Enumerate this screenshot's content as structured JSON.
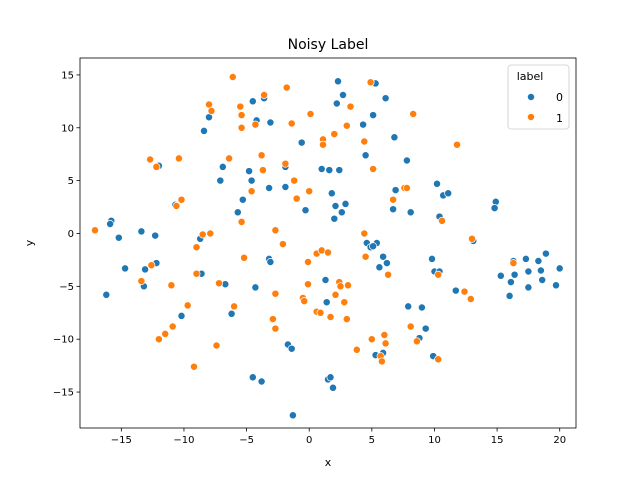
{
  "chart_data": {
    "type": "scatter",
    "title": "Noisy Label",
    "xlabel": "x",
    "ylabel": "y",
    "xlim": [
      -18.3,
      21.3
    ],
    "ylim": [
      -18.4,
      16.6
    ],
    "xticks": [
      -15,
      -10,
      -5,
      0,
      5,
      10,
      15,
      20
    ],
    "yticks": [
      -15,
      -10,
      -5,
      0,
      5,
      10,
      15
    ],
    "grid": false,
    "legend": {
      "title": "label",
      "placement": "top-right"
    },
    "series": [
      {
        "name": "0",
        "color": "#1f77b4",
        "points": [
          [
            -15.8,
            1.2
          ],
          [
            -15.9,
            0.9
          ],
          [
            -15.2,
            -0.4
          ],
          [
            -14.7,
            -3.3
          ],
          [
            -16.2,
            -5.8
          ],
          [
            -13.4,
            0.2
          ],
          [
            -12.3,
            -0.2
          ],
          [
            -13.1,
            -3.4
          ],
          [
            -12.2,
            -2.8
          ],
          [
            -13.2,
            -5.0
          ],
          [
            -12.0,
            6.4
          ],
          [
            -10.7,
            2.7
          ],
          [
            -8.7,
            -0.5
          ],
          [
            -8.6,
            -3.8
          ],
          [
            -8.4,
            9.7
          ],
          [
            -8.0,
            11.0
          ],
          [
            -7.1,
            5.0
          ],
          [
            -6.9,
            6.3
          ],
          [
            -5.7,
            2.0
          ],
          [
            -5.3,
            3.2
          ],
          [
            -6.7,
            -4.8
          ],
          [
            -6.2,
            -7.6
          ],
          [
            -10.2,
            -7.8
          ],
          [
            -4.8,
            5.9
          ],
          [
            -4.6,
            5.0
          ],
          [
            -4.5,
            12.5
          ],
          [
            -4.2,
            10.7
          ],
          [
            -3.6,
            12.8
          ],
          [
            -3.1,
            10.5
          ],
          [
            -3.2,
            4.3
          ],
          [
            -3.2,
            -2.4
          ],
          [
            -3.1,
            -2.7
          ],
          [
            -4.3,
            -5.1
          ],
          [
            -4.5,
            -13.6
          ],
          [
            -3.8,
            -14.0
          ],
          [
            -1.9,
            6.3
          ],
          [
            -1.9,
            4.4
          ],
          [
            -1.7,
            -10.5
          ],
          [
            -1.4,
            -10.9
          ],
          [
            -1.3,
            -17.2
          ],
          [
            -0.6,
            8.6
          ],
          [
            -0.3,
            2.2
          ],
          [
            1.0,
            6.1
          ],
          [
            1.6,
            6.0
          ],
          [
            1.8,
            3.8
          ],
          [
            2.1,
            2.6
          ],
          [
            2.0,
            1.4
          ],
          [
            2.4,
            6.0
          ],
          [
            2.3,
            14.4
          ],
          [
            2.2,
            12.3
          ],
          [
            2.7,
            13.1
          ],
          [
            2.9,
            2.8
          ],
          [
            1.3,
            -4.4
          ],
          [
            1.4,
            -6.5
          ],
          [
            1.5,
            -13.8
          ],
          [
            1.9,
            -14.6
          ],
          [
            1.7,
            -13.6
          ],
          [
            2.6,
            2.0
          ],
          [
            4.3,
            10.3
          ],
          [
            4.5,
            7.4
          ],
          [
            5.1,
            11.2
          ],
          [
            5.3,
            14.2
          ],
          [
            6.1,
            12.8
          ],
          [
            6.8,
            9.1
          ],
          [
            4.6,
            -0.9
          ],
          [
            4.9,
            -1.3
          ],
          [
            5.4,
            -0.9
          ],
          [
            5.6,
            -3.2
          ],
          [
            5.1,
            -1.2
          ],
          [
            5.3,
            -11.5
          ],
          [
            5.9,
            -11.3
          ],
          [
            5.9,
            -2.2
          ],
          [
            6.2,
            -2.8
          ],
          [
            6.7,
            2.3
          ],
          [
            6.9,
            4.1
          ],
          [
            7.8,
            6.9
          ],
          [
            7.9,
            -6.9
          ],
          [
            8.1,
            2.0
          ],
          [
            8.8,
            -9.9
          ],
          [
            9.0,
            -7.0
          ],
          [
            9.3,
            -9.0
          ],
          [
            9.8,
            -2.4
          ],
          [
            10.0,
            -3.6
          ],
          [
            9.9,
            -11.6
          ],
          [
            10.2,
            4.7
          ],
          [
            10.4,
            1.6
          ],
          [
            10.7,
            3.6
          ],
          [
            11.1,
            3.8
          ],
          [
            10.4,
            -3.6
          ],
          [
            11.7,
            -5.4
          ],
          [
            13.1,
            -0.7
          ],
          [
            14.9,
            3.0
          ],
          [
            14.8,
            2.4
          ],
          [
            15.3,
            -4.0
          ],
          [
            16.1,
            -4.6
          ],
          [
            16.0,
            -5.9
          ],
          [
            16.3,
            -2.6
          ],
          [
            16.4,
            -3.9
          ],
          [
            17.3,
            -2.4
          ],
          [
            17.5,
            -3.6
          ],
          [
            17.5,
            -5.1
          ],
          [
            18.3,
            -2.6
          ],
          [
            18.5,
            -3.5
          ],
          [
            18.6,
            -4.4
          ],
          [
            18.9,
            -1.9
          ],
          [
            19.7,
            -4.9
          ],
          [
            20.0,
            -3.3
          ]
        ]
      },
      {
        "name": "1",
        "color": "#ff7f0e",
        "points": [
          [
            -17.1,
            0.3
          ],
          [
            -13.4,
            -4.5
          ],
          [
            -12.6,
            -3.0
          ],
          [
            -12.7,
            7.0
          ],
          [
            -12.2,
            6.3
          ],
          [
            -10.6,
            2.6
          ],
          [
            -10.4,
            7.1
          ],
          [
            -10.2,
            3.2
          ],
          [
            -11.0,
            -4.9
          ],
          [
            -9.7,
            -6.8
          ],
          [
            -10.9,
            -8.8
          ],
          [
            -11.5,
            -9.5
          ],
          [
            -12.0,
            -10.0
          ],
          [
            -9.2,
            -12.6
          ],
          [
            -9.0,
            -3.8
          ],
          [
            -9.0,
            -1.3
          ],
          [
            -8.5,
            -0.1
          ],
          [
            -7.9,
            0.0
          ],
          [
            -8.0,
            12.2
          ],
          [
            -7.8,
            11.6
          ],
          [
            -6.4,
            7.1
          ],
          [
            -7.2,
            -4.7
          ],
          [
            -7.4,
            -10.6
          ],
          [
            -6.0,
            -6.9
          ],
          [
            -5.4,
            1.1
          ],
          [
            -5.2,
            -2.3
          ],
          [
            -5.5,
            12.0
          ],
          [
            -5.4,
            10.0
          ],
          [
            -6.1,
            14.8
          ],
          [
            -5.4,
            11.2
          ],
          [
            -4.6,
            4.0
          ],
          [
            -4.3,
            10.3
          ],
          [
            -3.6,
            13.1
          ],
          [
            -3.8,
            7.4
          ],
          [
            -3.7,
            6.0
          ],
          [
            -2.7,
            0.3
          ],
          [
            -2.7,
            -5.7
          ],
          [
            -2.9,
            -8.1
          ],
          [
            -2.7,
            -9.0
          ],
          [
            -2.1,
            -1.0
          ],
          [
            -1.9,
            6.6
          ],
          [
            -1.8,
            13.8
          ],
          [
            -1.4,
            10.4
          ],
          [
            -1.2,
            5.0
          ],
          [
            -1.0,
            3.3
          ],
          [
            -0.5,
            -6.1
          ],
          [
            -0.4,
            -6.4
          ],
          [
            -0.1,
            -2.7
          ],
          [
            -0.1,
            -4.8
          ],
          [
            0.1,
            11.3
          ],
          [
            0.0,
            4.0
          ],
          [
            0.6,
            -7.4
          ],
          [
            0.6,
            -1.9
          ],
          [
            0.9,
            -7.5
          ],
          [
            1.0,
            -1.6
          ],
          [
            1.1,
            8.9
          ],
          [
            1.1,
            8.4
          ],
          [
            1.5,
            -1.8
          ],
          [
            1.7,
            -7.9
          ],
          [
            2.0,
            9.4
          ],
          [
            2.1,
            -5.8
          ],
          [
            2.4,
            -4.6
          ],
          [
            2.5,
            -5.0
          ],
          [
            2.8,
            -6.5
          ],
          [
            3.0,
            -8.1
          ],
          [
            3.0,
            10.2
          ],
          [
            3.1,
            -4.9
          ],
          [
            3.3,
            12.0
          ],
          [
            3.8,
            -11.0
          ],
          [
            4.4,
            0.0
          ],
          [
            4.4,
            8.7
          ],
          [
            4.5,
            -2.2
          ],
          [
            4.9,
            14.3
          ],
          [
            5.0,
            -10.0
          ],
          [
            5.1,
            6.1
          ],
          [
            5.7,
            -11.6
          ],
          [
            5.8,
            -12.1
          ],
          [
            6.0,
            -9.6
          ],
          [
            6.1,
            -10.4
          ],
          [
            6.3,
            -3.9
          ],
          [
            6.7,
            3.2
          ],
          [
            7.6,
            4.3
          ],
          [
            7.8,
            4.3
          ],
          [
            8.1,
            -8.8
          ],
          [
            8.3,
            11.3
          ],
          [
            8.6,
            -10.2
          ],
          [
            10.3,
            -11.9
          ],
          [
            10.3,
            -3.9
          ],
          [
            10.6,
            1.2
          ],
          [
            11.8,
            8.4
          ],
          [
            12.4,
            -5.5
          ],
          [
            13.0,
            -0.5
          ],
          [
            12.9,
            -6.2
          ],
          [
            16.3,
            -2.8
          ]
        ]
      }
    ]
  }
}
